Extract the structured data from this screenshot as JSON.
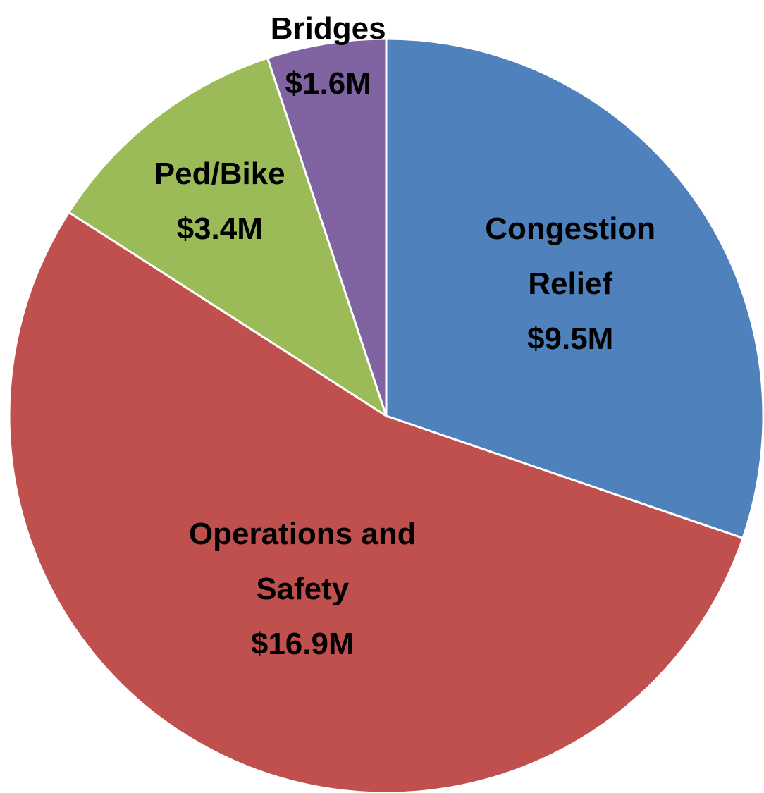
{
  "chart_data": {
    "type": "pie",
    "categories": [
      "Congestion Relief",
      "Operations and Safety",
      "Ped/Bike",
      "Bridges"
    ],
    "values": [
      9.5,
      16.9,
      3.4,
      1.6
    ],
    "value_labels": [
      "$9.5M",
      "$16.9M",
      "$3.4M",
      "$1.6M"
    ],
    "colors": [
      "#4f81bd",
      "#c0504d",
      "#9bbb59",
      "#8064a2"
    ]
  }
}
